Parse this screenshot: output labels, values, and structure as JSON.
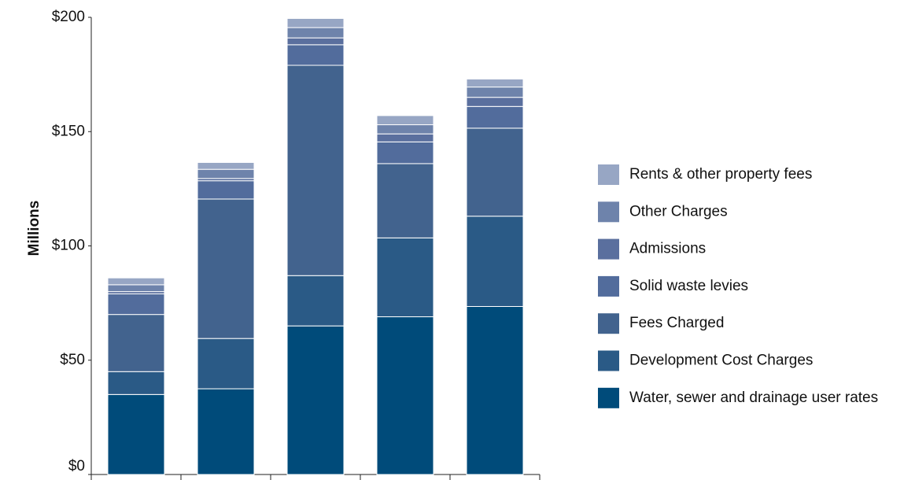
{
  "chart_data": {
    "type": "stacked_bar",
    "y_label": "Millions",
    "categories": [
      null,
      null,
      null,
      null,
      null
    ],
    "series": [
      {
        "name": "Water, sewer and drainage user rates",
        "color": "#004b7a",
        "values": [
          35,
          37.5,
          65,
          69,
          73.5
        ]
      },
      {
        "name": "Development Cost Charges",
        "color": "#2a5a86",
        "values": [
          10,
          22,
          22,
          34.5,
          39.5
        ]
      },
      {
        "name": "Fees Charged",
        "color": "#42638e",
        "values": [
          25,
          61,
          92,
          32.5,
          38.5
        ]
      },
      {
        "name": "Solid waste levies",
        "color": "#526c9c",
        "values": [
          9,
          8,
          9,
          9.5,
          9.5
        ]
      },
      {
        "name": "Admissions",
        "color": "#5a6f9e",
        "values": [
          1,
          1,
          3,
          3.5,
          4
        ]
      },
      {
        "name": "Other Charges",
        "color": "#6e83ab",
        "values": [
          3,
          4,
          4.5,
          4,
          4.5
        ]
      },
      {
        "name": "Rents & other property fees",
        "color": "#97a6c4",
        "values": [
          3,
          3,
          4,
          4,
          3.5
        ]
      }
    ],
    "ylim": [
      0,
      200
    ],
    "yticks": [
      {
        "value": 0,
        "label": "$0"
      },
      {
        "value": 50,
        "label": "$50"
      },
      {
        "value": 100,
        "label": "$100"
      },
      {
        "value": 150,
        "label": "$150"
      },
      {
        "value": 200,
        "label": "$200"
      }
    ],
    "legend": "right"
  }
}
